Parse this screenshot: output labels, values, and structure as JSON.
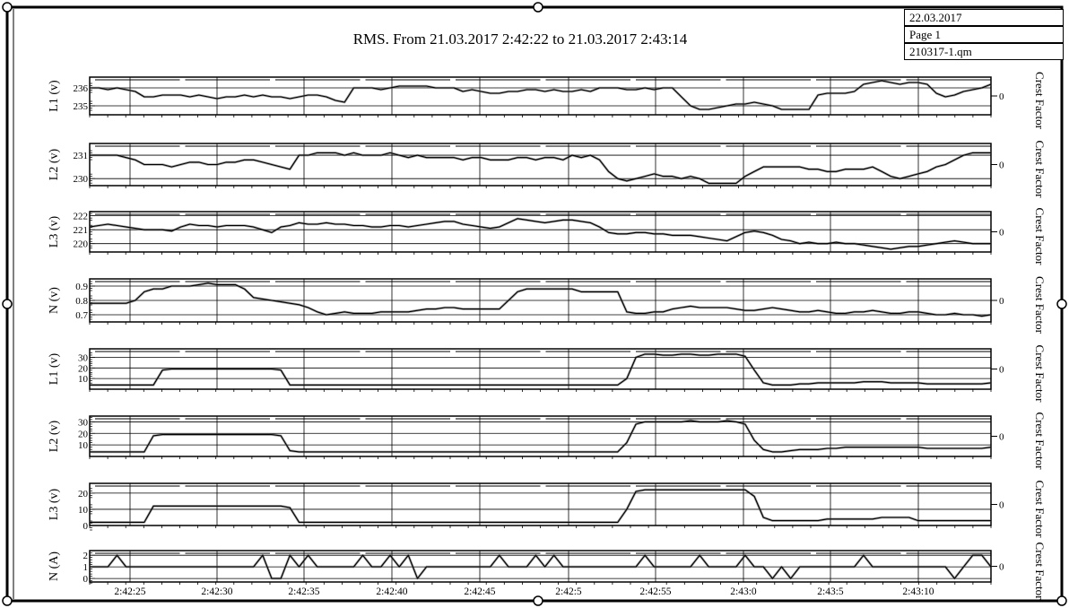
{
  "header": {
    "date": "22.03.2017",
    "page": "Page 1",
    "file": "210317-1.qm"
  },
  "chart_data": {
    "type": "line",
    "title": "RMS. From 21.03.2017 2:42:22 to 21.03.2017 2:43:14",
    "x_tick_labels": [
      "2:42:25",
      "2:42:30",
      "2:42:35",
      "2:42:40",
      "2:42:45",
      "2:42:5",
      "2:42:55",
      "2:43:0",
      "2:43:5",
      "2:43:10"
    ],
    "right_axis_label": "Crest Factor",
    "right_axis_tick": "0",
    "n_samples": 100,
    "panels": [
      {
        "ylabel": "L1 (v)",
        "ylim": [
          234.5,
          236.6
        ],
        "yticks": [
          "236",
          "235"
        ],
        "ytick_values": [
          236,
          235
        ],
        "values": [
          236.0,
          236.0,
          235.9,
          236.0,
          235.9,
          235.8,
          235.5,
          235.5,
          235.6,
          235.6,
          235.6,
          235.5,
          235.6,
          235.5,
          235.4,
          235.5,
          235.5,
          235.6,
          235.5,
          235.6,
          235.5,
          235.5,
          235.4,
          235.5,
          235.6,
          235.6,
          235.5,
          235.3,
          235.2,
          236.0,
          236.0,
          236.0,
          235.9,
          236.0,
          236.1,
          236.1,
          236.1,
          236.1,
          236.0,
          236.0,
          236.0,
          235.8,
          235.9,
          235.8,
          235.7,
          235.7,
          235.8,
          235.8,
          235.9,
          235.9,
          235.8,
          235.9,
          235.8,
          235.8,
          235.9,
          235.8,
          236.0,
          236.0,
          236.0,
          235.9,
          235.9,
          236.0,
          235.9,
          236.0,
          236.0,
          235.5,
          235.0,
          234.8,
          234.8,
          234.9,
          235.0,
          235.1,
          235.1,
          235.2,
          235.1,
          235.0,
          234.8,
          234.8,
          234.8,
          234.8,
          235.6,
          235.7,
          235.7,
          235.7,
          235.8,
          236.2,
          236.3,
          236.4,
          236.3,
          236.2,
          236.3,
          236.3,
          236.2,
          235.7,
          235.5,
          235.6,
          235.8,
          235.9,
          236.0,
          236.2
        ]
      },
      {
        "ylabel": "L2 (v)",
        "ylim": [
          229.7,
          231.5
        ],
        "yticks": [
          "231",
          "230"
        ],
        "ytick_values": [
          231,
          230
        ],
        "values": [
          231.0,
          231.0,
          231.0,
          231.0,
          230.9,
          230.8,
          230.6,
          230.6,
          230.6,
          230.5,
          230.6,
          230.7,
          230.7,
          230.6,
          230.6,
          230.7,
          230.7,
          230.8,
          230.8,
          230.7,
          230.6,
          230.5,
          230.4,
          231.0,
          231.0,
          231.1,
          231.1,
          231.1,
          231.0,
          231.1,
          231.0,
          231.0,
          231.0,
          231.1,
          231.0,
          230.9,
          231.0,
          230.9,
          230.9,
          230.9,
          230.9,
          230.8,
          230.9,
          230.9,
          230.8,
          230.8,
          230.8,
          230.9,
          230.9,
          230.8,
          230.9,
          230.9,
          230.8,
          231.0,
          230.9,
          231.0,
          230.8,
          230.3,
          230.0,
          229.9,
          230.0,
          230.1,
          230.2,
          230.1,
          230.1,
          230.0,
          230.1,
          230.0,
          229.8,
          229.8,
          229.8,
          229.8,
          230.1,
          230.3,
          230.5,
          230.5,
          230.5,
          230.5,
          230.5,
          230.4,
          230.4,
          230.3,
          230.3,
          230.4,
          230.4,
          230.4,
          230.5,
          230.3,
          230.1,
          230.0,
          230.1,
          230.2,
          230.3,
          230.5,
          230.6,
          230.8,
          231.0,
          231.1,
          231.1,
          231.1
        ]
      },
      {
        "ylabel": "L3 (v)",
        "ylim": [
          219.4,
          222.3
        ],
        "yticks": [
          "222",
          "221",
          "220"
        ],
        "ytick_values": [
          222,
          221,
          220
        ],
        "values": [
          221.2,
          221.3,
          221.4,
          221.3,
          221.2,
          221.1,
          221.0,
          221.0,
          221.0,
          220.9,
          221.2,
          221.4,
          221.3,
          221.3,
          221.2,
          221.3,
          221.3,
          221.3,
          221.2,
          221.0,
          220.8,
          221.2,
          221.3,
          221.5,
          221.4,
          221.4,
          221.5,
          221.4,
          221.4,
          221.3,
          221.3,
          221.2,
          221.2,
          221.3,
          221.3,
          221.2,
          221.3,
          221.4,
          221.5,
          221.6,
          221.6,
          221.4,
          221.3,
          221.2,
          221.1,
          221.2,
          221.5,
          221.8,
          221.7,
          221.6,
          221.5,
          221.6,
          221.7,
          221.7,
          221.6,
          221.5,
          221.2,
          220.8,
          220.7,
          220.7,
          220.8,
          220.8,
          220.7,
          220.7,
          220.6,
          220.6,
          220.6,
          220.5,
          220.4,
          220.3,
          220.2,
          220.5,
          220.8,
          220.9,
          220.8,
          220.6,
          220.3,
          220.2,
          220.0,
          220.1,
          220.0,
          220.0,
          220.1,
          220.0,
          220.0,
          219.9,
          219.8,
          219.7,
          219.6,
          219.7,
          219.8,
          219.8,
          219.9,
          220.0,
          220.1,
          220.2,
          220.1,
          220.0,
          220.0,
          220.0
        ]
      },
      {
        "ylabel": "N (v)",
        "ylim": [
          0.65,
          0.95
        ],
        "yticks": [
          "0.9",
          "0.8",
          "0.7"
        ],
        "ytick_values": [
          0.9,
          0.8,
          0.7
        ],
        "values": [
          0.78,
          0.78,
          0.78,
          0.78,
          0.78,
          0.8,
          0.86,
          0.88,
          0.88,
          0.9,
          0.9,
          0.9,
          0.91,
          0.92,
          0.91,
          0.91,
          0.91,
          0.88,
          0.82,
          0.81,
          0.8,
          0.79,
          0.78,
          0.77,
          0.75,
          0.72,
          0.7,
          0.71,
          0.72,
          0.71,
          0.71,
          0.71,
          0.72,
          0.72,
          0.72,
          0.72,
          0.73,
          0.74,
          0.74,
          0.75,
          0.75,
          0.74,
          0.74,
          0.74,
          0.74,
          0.74,
          0.8,
          0.86,
          0.88,
          0.88,
          0.88,
          0.88,
          0.88,
          0.88,
          0.86,
          0.86,
          0.86,
          0.86,
          0.86,
          0.72,
          0.71,
          0.71,
          0.72,
          0.72,
          0.74,
          0.75,
          0.76,
          0.75,
          0.75,
          0.75,
          0.75,
          0.74,
          0.73,
          0.73,
          0.74,
          0.75,
          0.74,
          0.73,
          0.72,
          0.72,
          0.73,
          0.72,
          0.71,
          0.71,
          0.72,
          0.72,
          0.73,
          0.72,
          0.71,
          0.71,
          0.72,
          0.72,
          0.71,
          0.7,
          0.7,
          0.71,
          0.7,
          0.7,
          0.69,
          0.7
        ]
      },
      {
        "ylabel": "L1 (v)",
        "ylim": [
          0,
          38
        ],
        "yticks": [
          "30",
          "20",
          "10"
        ],
        "ytick_values": [
          30,
          20,
          10
        ],
        "values": [
          4,
          4,
          4,
          4,
          4,
          4,
          4,
          4,
          18,
          19,
          19,
          19,
          19,
          19,
          19,
          19,
          19,
          19,
          19,
          19,
          19,
          18,
          4,
          4,
          4,
          4,
          4,
          4,
          4,
          4,
          4,
          4,
          4,
          4,
          4,
          4,
          4,
          4,
          4,
          4,
          4,
          4,
          4,
          4,
          4,
          4,
          4,
          4,
          4,
          4,
          4,
          4,
          4,
          4,
          4,
          4,
          4,
          4,
          4,
          10,
          30,
          33,
          33,
          32,
          32,
          33,
          33,
          32,
          32,
          33,
          33,
          33,
          31,
          18,
          6,
          4,
          4,
          4,
          5,
          5,
          6,
          6,
          6,
          6,
          6,
          7,
          7,
          7,
          6,
          6,
          6,
          6,
          5,
          5,
          5,
          5,
          5,
          5,
          5,
          6
        ]
      },
      {
        "ylabel": "L2 (v)",
        "ylim": [
          0,
          35
        ],
        "yticks": [
          "30",
          "20",
          "10"
        ],
        "ytick_values": [
          30,
          20,
          10
        ],
        "values": [
          4,
          4,
          4,
          4,
          4,
          4,
          4,
          18,
          19,
          19,
          19,
          19,
          19,
          19,
          19,
          19,
          19,
          19,
          19,
          19,
          19,
          18,
          5,
          4,
          4,
          4,
          4,
          4,
          4,
          4,
          4,
          4,
          4,
          4,
          4,
          4,
          4,
          4,
          4,
          4,
          4,
          4,
          4,
          4,
          4,
          4,
          4,
          4,
          4,
          4,
          4,
          4,
          4,
          4,
          4,
          4,
          4,
          4,
          4,
          12,
          28,
          30,
          30,
          30,
          30,
          30,
          31,
          30,
          30,
          30,
          31,
          30,
          28,
          14,
          6,
          4,
          4,
          5,
          6,
          6,
          6,
          7,
          7,
          8,
          8,
          8,
          8,
          8,
          8,
          8,
          8,
          8,
          7,
          7,
          7,
          7,
          7,
          7,
          7,
          8
        ]
      },
      {
        "ylabel": "L3 (v)",
        "ylim": [
          0,
          26
        ],
        "yticks": [
          "20",
          "10",
          "0"
        ],
        "ytick_values": [
          20,
          10,
          0
        ],
        "values": [
          2,
          2,
          2,
          2,
          2,
          2,
          2,
          12,
          12,
          12,
          12,
          12,
          12,
          12,
          12,
          12,
          12,
          12,
          12,
          12,
          12,
          12,
          11,
          2,
          2,
          2,
          2,
          2,
          2,
          2,
          2,
          2,
          2,
          2,
          2,
          2,
          2,
          2,
          2,
          2,
          2,
          2,
          2,
          2,
          2,
          2,
          2,
          2,
          2,
          2,
          2,
          2,
          2,
          2,
          2,
          2,
          2,
          2,
          2,
          10,
          21,
          22,
          22,
          22,
          22,
          22,
          22,
          22,
          22,
          22,
          22,
          22,
          22,
          18,
          5,
          3,
          3,
          3,
          3,
          3,
          3,
          4,
          4,
          4,
          4,
          4,
          4,
          5,
          5,
          5,
          5,
          3,
          3,
          3,
          3,
          3,
          3,
          3,
          3,
          3
        ]
      },
      {
        "ylabel": "N (A)",
        "ylim": [
          -0.3,
          2.4
        ],
        "yticks": [
          "2",
          "1",
          "0"
        ],
        "ytick_values": [
          2,
          1,
          0
        ],
        "values": [
          1,
          1,
          1,
          2,
          1,
          1,
          1,
          1,
          1,
          1,
          1,
          1,
          1,
          1,
          1,
          1,
          1,
          1,
          1,
          2,
          0,
          0,
          2,
          1,
          2,
          1,
          1,
          1,
          1,
          1,
          2,
          1,
          1,
          2,
          1,
          2,
          0,
          1,
          1,
          1,
          1,
          1,
          1,
          1,
          1,
          2,
          1,
          1,
          1,
          2,
          1,
          2,
          1,
          1,
          1,
          1,
          1,
          1,
          1,
          1,
          1,
          2,
          1,
          1,
          1,
          1,
          1,
          2,
          1,
          1,
          1,
          1,
          2,
          1,
          1,
          0,
          1,
          0,
          1,
          1,
          1,
          1,
          1,
          1,
          1,
          2,
          1,
          1,
          1,
          1,
          1,
          1,
          1,
          1,
          1,
          0,
          1,
          2,
          2,
          1
        ]
      }
    ]
  }
}
